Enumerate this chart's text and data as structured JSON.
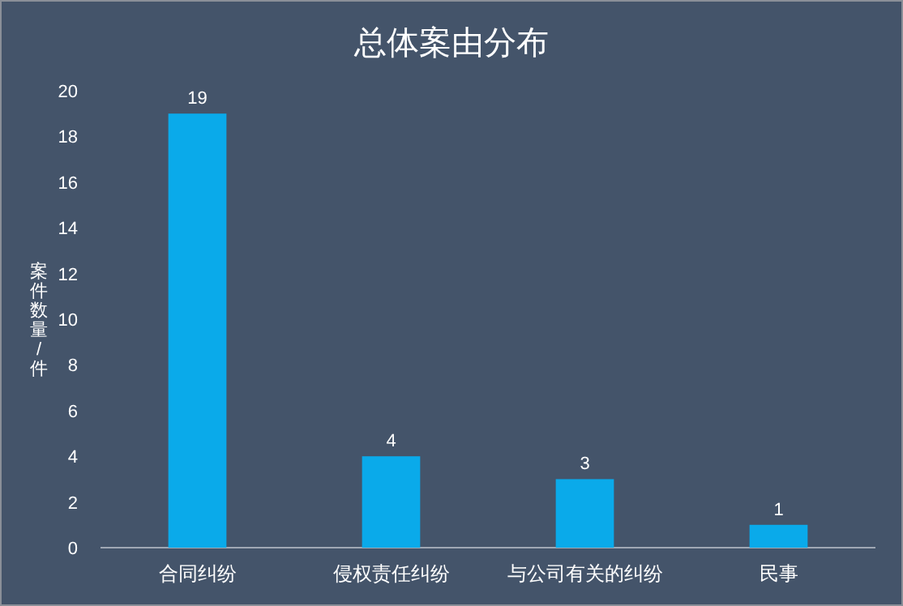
{
  "chart_data": {
    "type": "bar",
    "title": "总体案由分布",
    "ylabel": "案件数量/件",
    "categories": [
      "合同纠纷",
      "侵权责任纠纷",
      "与公司有关的纠纷",
      "民事"
    ],
    "values": [
      19,
      4,
      3,
      1
    ],
    "color": "#0aaaea",
    "ylim": [
      0,
      20
    ],
    "yticks": [
      0,
      2,
      4,
      6,
      8,
      10,
      12,
      14,
      16,
      18,
      20
    ],
    "grid": false,
    "data_labels": true
  }
}
